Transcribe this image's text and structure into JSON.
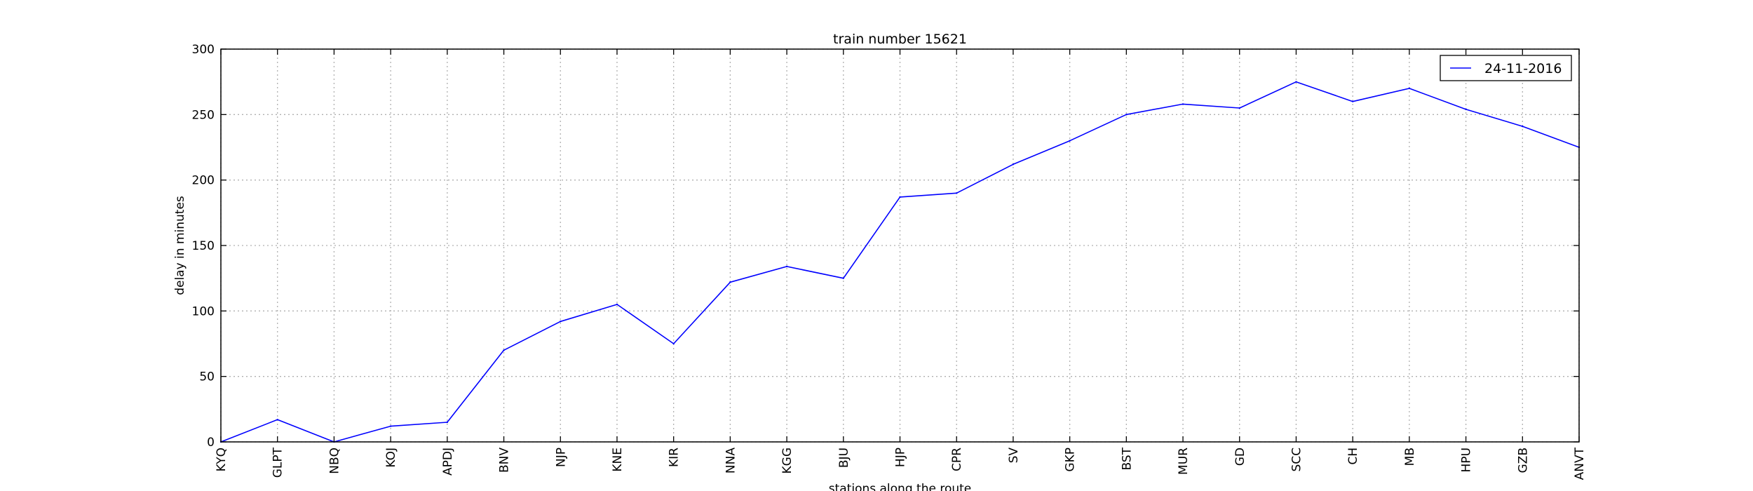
{
  "chart_data": {
    "type": "line",
    "title": "train number 15621",
    "xlabel": "stations along the route",
    "ylabel": "delay in minutes",
    "categories": [
      "KYQ",
      "GLPT",
      "NBQ",
      "KOJ",
      "APDJ",
      "BNV",
      "NJP",
      "KNE",
      "KIR",
      "NNA",
      "KGG",
      "BJU",
      "HJP",
      "CPR",
      "SV",
      "GKP",
      "BST",
      "MUR",
      "GD",
      "SCC",
      "CH",
      "MB",
      "HPU",
      "GZB",
      "ANVT"
    ],
    "series": [
      {
        "name": "24-11-2016",
        "color": "#0000ff",
        "values": [
          0,
          17,
          0,
          12,
          15,
          70,
          92,
          105,
          75,
          122,
          134,
          125,
          187,
          190,
          212,
          230,
          250,
          258,
          255,
          275,
          260,
          270,
          254,
          241,
          225
        ]
      }
    ],
    "ylim": [
      0,
      300
    ],
    "yticks": [
      0,
      50,
      100,
      150,
      200,
      250,
      300
    ],
    "grid": true,
    "legend_position": "top-right"
  }
}
